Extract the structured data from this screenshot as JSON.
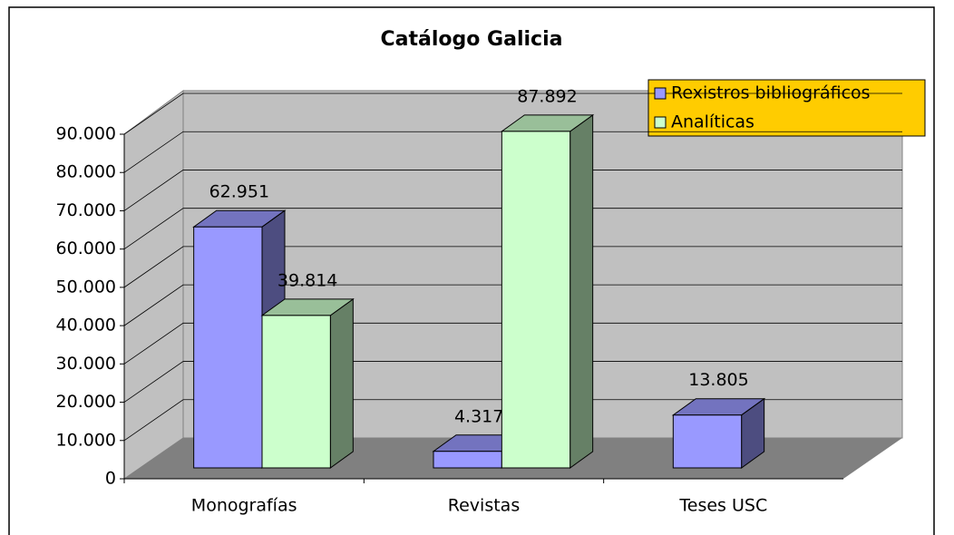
{
  "chart_data": {
    "type": "bar3d",
    "title": "Catálogo Galicia",
    "categories": [
      "Monografías",
      "Revistas",
      "Teses USC"
    ],
    "series": [
      {
        "name": "Rexistros bibliográficos",
        "color": "#9999ff",
        "values": [
          62951,
          4317,
          13805
        ],
        "value_labels": [
          "62.951",
          "4.317",
          "13.805"
        ]
      },
      {
        "name": "Analíticas",
        "color": "#ccffcc",
        "values": [
          39814,
          87892,
          null
        ],
        "value_labels": [
          "39.814",
          "87.892",
          null
        ]
      }
    ],
    "ylim": [
      0,
      90000
    ],
    "yticks": [
      0,
      {
        "value": 10000,
        "label": "10.000"
      },
      {
        "value": 20000,
        "label": "20.000"
      },
      {
        "value": 30000,
        "label": "30.000"
      },
      {
        "value": 40000,
        "label": "40.000"
      },
      {
        "value": 50000,
        "label": "50.000"
      },
      {
        "value": 60000,
        "label": "60.000"
      },
      {
        "value": 70000,
        "label": "70.000"
      },
      {
        "value": 80000,
        "label": "80.000"
      },
      {
        "value": 90000,
        "label": "90.000"
      }
    ],
    "grid": true,
    "legend": "top-right"
  }
}
